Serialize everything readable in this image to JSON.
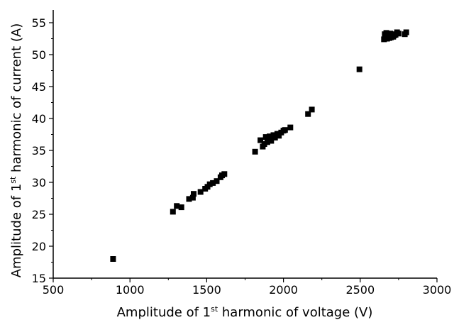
{
  "chart_data": {
    "type": "scatter",
    "xlabel": {
      "prefix": "Amplitude  of 1",
      "sup": "st",
      "suffix": " harmonic of voltage (V)"
    },
    "ylabel": {
      "prefix": "Amplitude of 1",
      "sup": "st",
      "suffix": " harmonic of current (A)"
    },
    "xlim": [
      500,
      3000
    ],
    "ylim": [
      15,
      57
    ],
    "xticks": [
      500,
      1000,
      1500,
      2000,
      2500,
      3000
    ],
    "yticks": [
      15,
      20,
      25,
      30,
      35,
      40,
      45,
      50,
      55
    ],
    "grid": false,
    "legend": "none",
    "marker": "square",
    "marker_color": "#000000",
    "series": [
      {
        "x": [
          890,
          1280,
          1305,
          1335,
          1385,
          1410,
          1415,
          1460,
          1490,
          1505,
          1520,
          1540,
          1565,
          1590,
          1600,
          1615,
          1815,
          1850,
          1865,
          1875,
          1885,
          1895,
          1900,
          1910,
          1920,
          1935,
          1945,
          1960,
          1970,
          1985,
          2000,
          2010,
          2045,
          2160,
          2185,
          2495,
          2655,
          2660,
          2665,
          2670,
          2675,
          2680,
          2685,
          2690,
          2695,
          2700,
          2705,
          2710,
          2715,
          2720,
          2730,
          2740,
          2750,
          2790,
          2800
        ],
        "y": [
          18.0,
          25.4,
          26.3,
          26.1,
          27.4,
          27.6,
          28.2,
          28.5,
          29.0,
          29.3,
          29.7,
          29.9,
          30.2,
          30.8,
          31.1,
          31.3,
          34.8,
          36.6,
          35.6,
          36.0,
          37.1,
          36.3,
          36.8,
          37.2,
          36.5,
          37.4,
          37.0,
          37.6,
          37.3,
          37.8,
          38.1,
          38.2,
          38.6,
          40.7,
          41.4,
          47.7,
          52.4,
          53.2,
          52.8,
          53.4,
          52.5,
          52.9,
          53.1,
          52.6,
          53.3,
          52.7,
          52.9,
          53.2,
          52.8,
          53.0,
          53.1,
          53.5,
          53.3,
          53.2,
          53.5
        ]
      }
    ]
  }
}
